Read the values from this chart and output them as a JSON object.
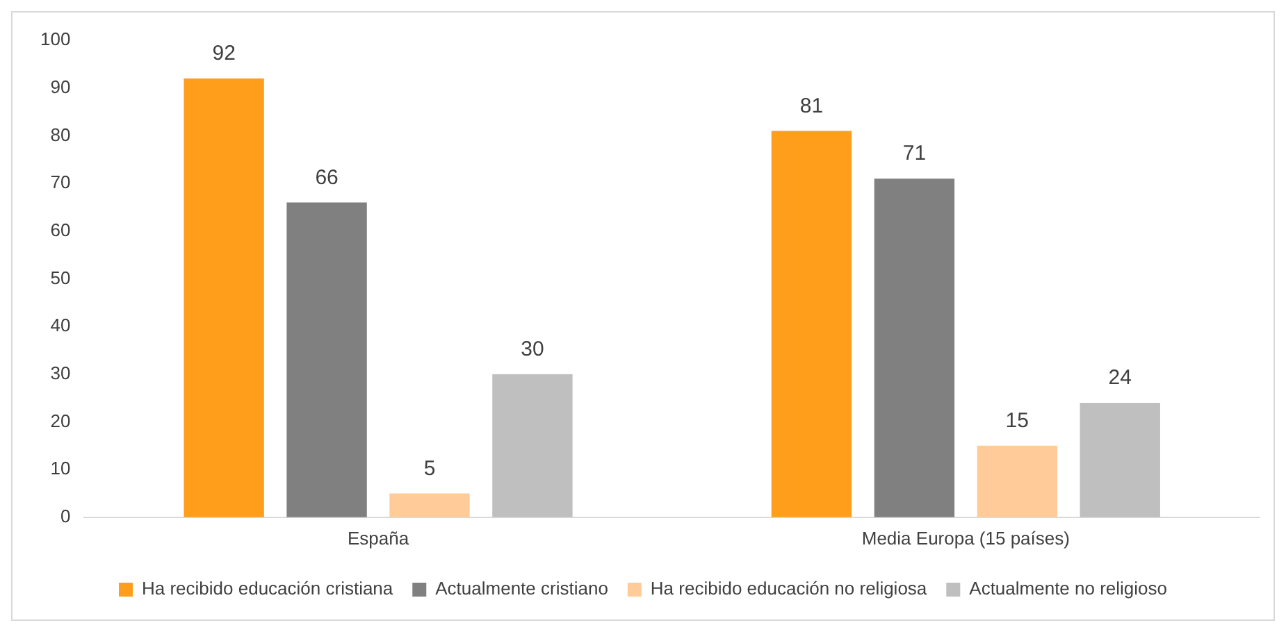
{
  "chart_data": {
    "type": "bar",
    "categories": [
      "España",
      "Media Europa (15 países)"
    ],
    "series": [
      {
        "name": "Ha recibido educación cristiana",
        "color": "#ff9e1b",
        "values": [
          92,
          81
        ]
      },
      {
        "name": "Actualmente cristiano",
        "color": "#808080",
        "values": [
          66,
          71
        ]
      },
      {
        "name": "Ha recibido educación no religiosa",
        "color": "#ffcc99",
        "values": [
          5,
          15
        ]
      },
      {
        "name": "Actualmente no religioso",
        "color": "#bfbfbf",
        "values": [
          30,
          24
        ]
      }
    ],
    "ylim": [
      0,
      100
    ],
    "yticks": [
      0,
      10,
      20,
      30,
      40,
      50,
      60,
      70,
      80,
      90,
      100
    ],
    "grid": false,
    "legend": "bottom",
    "data_labels": true
  }
}
